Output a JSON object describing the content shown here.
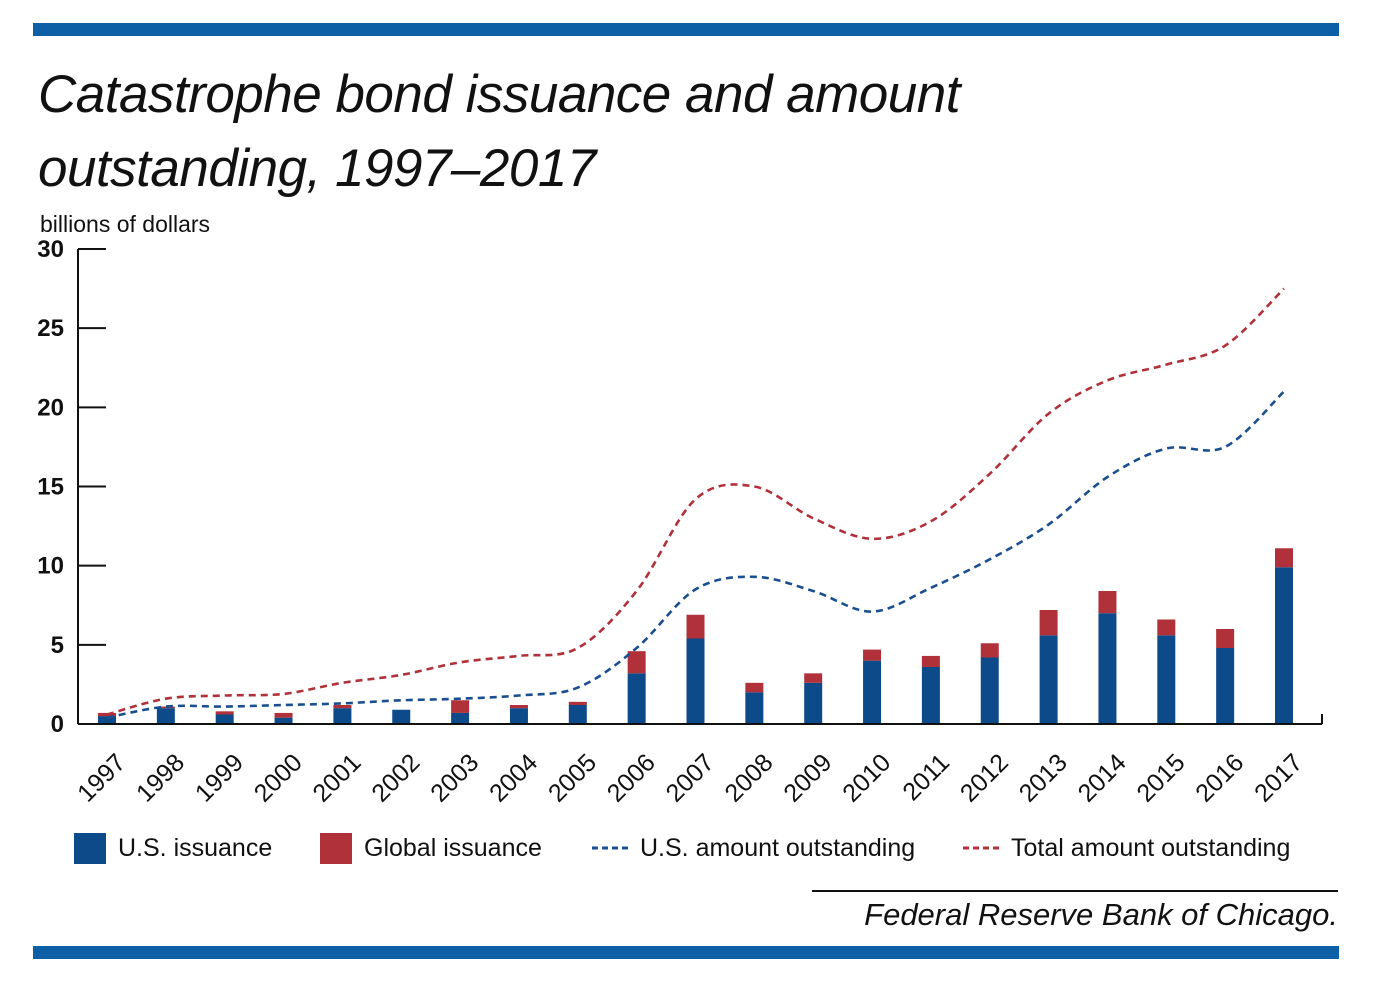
{
  "colors": {
    "us_issuance": "#0d4a8a",
    "global_issuance": "#b0313a",
    "us_outstanding": "#1a4f8f",
    "total_outstanding": "#b0313a",
    "rule": "#0d5fa6"
  },
  "header": {
    "title": "Catastrophe bond issuance and amount outstanding, 1997–2017",
    "unit_label": "billions of dollars"
  },
  "legend": {
    "us_issuance": "U.S. issuance",
    "global_issuance": "Global issuance",
    "us_outstanding": "U.S. amount outstanding",
    "total_outstanding": "Total amount outstanding"
  },
  "source": "Federal Reserve Bank of Chicago.",
  "chart_data": {
    "type": "bar",
    "title": "Catastrophe bond issuance and amount outstanding, 1997–2017",
    "ylabel": "billions of dollars",
    "ylim": [
      0,
      30
    ],
    "yticks": [
      0,
      5,
      10,
      15,
      20,
      25,
      30
    ],
    "categories": [
      "1997",
      "1998",
      "1999",
      "2000",
      "2001",
      "2002",
      "2003",
      "2004",
      "2005",
      "2006",
      "2007",
      "2008",
      "2009",
      "2010",
      "2011",
      "2012",
      "2013",
      "2014",
      "2015",
      "2016",
      "2017"
    ],
    "stacked": true,
    "series": [
      {
        "name": "U.S. issuance",
        "kind": "bar",
        "values": [
          0.5,
          1.0,
          0.6,
          0.4,
          1.0,
          0.9,
          0.7,
          1.0,
          1.2,
          3.2,
          5.4,
          2.0,
          2.6,
          4.0,
          3.6,
          4.2,
          5.6,
          7.0,
          5.6,
          4.8,
          9.9
        ]
      },
      {
        "name": "Global issuance",
        "kind": "bar",
        "values": [
          0.2,
          0.1,
          0.2,
          0.3,
          0.2,
          0.0,
          0.8,
          0.2,
          0.2,
          1.4,
          1.5,
          0.6,
          0.6,
          0.7,
          0.7,
          0.9,
          1.6,
          1.4,
          1.0,
          1.2,
          1.2
        ]
      },
      {
        "name": "U.S. amount outstanding",
        "kind": "line",
        "values": [
          0.4,
          1.1,
          1.1,
          1.2,
          1.3,
          1.5,
          1.6,
          1.8,
          2.3,
          4.8,
          8.5,
          9.3,
          8.4,
          7.1,
          8.6,
          10.4,
          12.6,
          15.6,
          17.4,
          17.5,
          21.0
        ]
      },
      {
        "name": "Total amount outstanding",
        "kind": "line",
        "values": [
          0.6,
          1.6,
          1.8,
          1.9,
          2.6,
          3.1,
          3.9,
          4.3,
          4.8,
          8.4,
          14.2,
          15.0,
          13.0,
          11.7,
          12.8,
          15.8,
          19.6,
          21.7,
          22.7,
          23.9,
          27.5
        ]
      }
    ],
    "grid": false,
    "legend_position": "bottom"
  }
}
